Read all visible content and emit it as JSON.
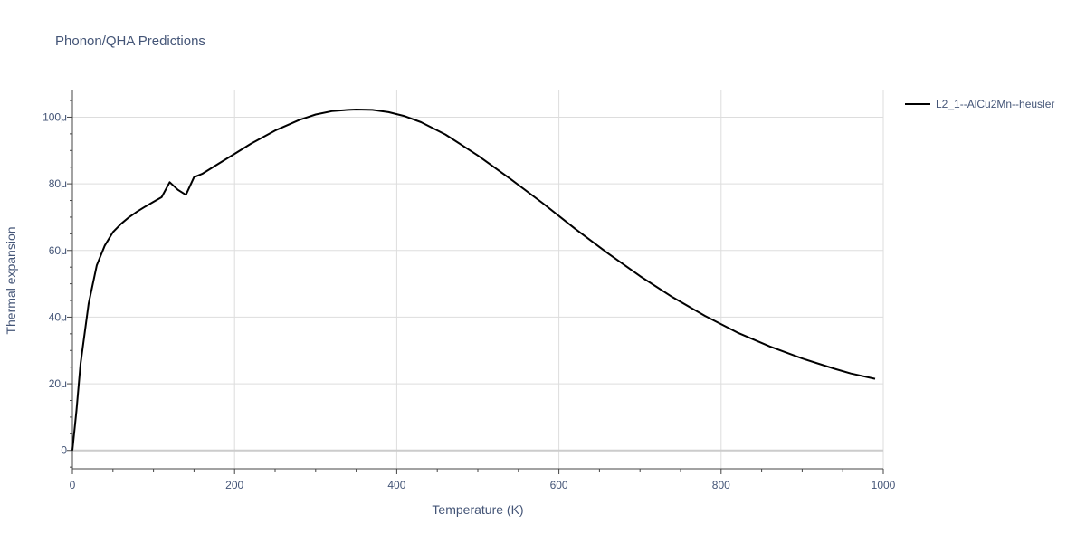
{
  "chart_data": {
    "type": "line",
    "title": "Phonon/QHA Predictions",
    "xlabel": "Temperature (K)",
    "ylabel": "Thermal expansion",
    "xlim": [
      0,
      1000
    ],
    "ylim": [
      -5.5,
      108
    ],
    "grid": true,
    "legend_position": "top-right outside",
    "x_ticks": [
      0,
      200,
      400,
      600,
      800,
      1000
    ],
    "x_tick_labels": [
      "0",
      "200",
      "400",
      "600",
      "800",
      "1000"
    ],
    "y_ticks": [
      0,
      20,
      40,
      60,
      80,
      100
    ],
    "y_tick_labels": [
      "0",
      "20μ",
      "40μ",
      "60μ",
      "80μ",
      "100μ"
    ],
    "y_unit_note": "values in units of 1e-6",
    "series": [
      {
        "name": "L2_1--AlCu2Mn--heusler",
        "color": "#000000",
        "x": [
          0,
          5,
          10,
          20,
          30,
          40,
          50,
          60,
          70,
          80,
          90,
          100,
          110,
          120,
          130,
          140,
          150,
          160,
          180,
          200,
          220,
          250,
          280,
          300,
          320,
          340,
          350,
          370,
          390,
          410,
          430,
          460,
          500,
          540,
          580,
          620,
          660,
          700,
          740,
          780,
          820,
          860,
          900,
          940,
          960,
          990
        ],
        "y": [
          0,
          12,
          26,
          44,
          55.5,
          61.5,
          65.5,
          68,
          70,
          71.7,
          73.2,
          74.6,
          76,
          80.5,
          78.2,
          76.7,
          82,
          83,
          86,
          89,
          92,
          96,
          99.2,
          100.8,
          101.8,
          102.2,
          102.3,
          102.2,
          101.5,
          100.3,
          98.5,
          94.8,
          88.5,
          81.5,
          74.2,
          66.5,
          59.2,
          52.3,
          46,
          40.4,
          35.4,
          31.2,
          27.6,
          24.5,
          23.1,
          21.5
        ]
      }
    ]
  }
}
